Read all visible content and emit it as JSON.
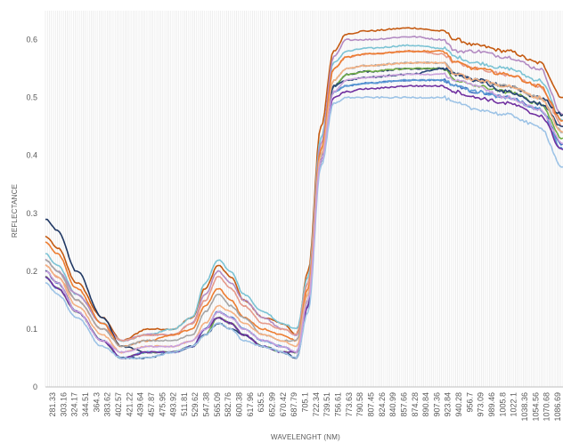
{
  "chart_data": {
    "type": "line",
    "title": "",
    "xlabel": "WAVELENGHT (NM)",
    "ylabel": "REFLECTANCE",
    "ylim": [
      0,
      0.65
    ],
    "y_ticks": [
      "0",
      "0.1",
      "0.2",
      "0.3",
      "0.4",
      "0.5",
      "0.6"
    ],
    "y_tick_values": [
      0,
      0.1,
      0.2,
      0.3,
      0.4,
      0.5,
      0.6
    ],
    "x_tick_labels": [
      "281.33",
      "303.16",
      "324.17",
      "344.51",
      "364.3",
      "383.62",
      "402.57",
      "421.22",
      "439.64",
      "457.87",
      "475.95",
      "493.92",
      "511.81",
      "529.62",
      "547.38",
      "565.09",
      "582.76",
      "600.38",
      "617.96",
      "635.5",
      "652.99",
      "670.42",
      "687.79",
      "705.1",
      "722.34",
      "739.51",
      "756.61",
      "773.63",
      "790.58",
      "807.45",
      "824.26",
      "840.99",
      "857.66",
      "874.28",
      "890.84",
      "907.36",
      "923.84",
      "940.28",
      "956.7",
      "973.09",
      "989.46",
      "1005.8",
      "1022.1",
      "1038.36",
      "1054.56",
      "1070.68",
      "1086.69"
    ],
    "grid": "dense vertical gridlines",
    "legend": "none",
    "x_anchor_wavelengths": [
      281.33,
      300,
      330,
      370,
      400,
      440,
      480,
      510,
      530,
      550,
      570,
      590,
      620,
      650,
      672,
      690,
      710,
      730,
      750,
      780,
      850,
      900,
      920,
      950,
      1000,
      1050,
      1086.69
    ],
    "series": [
      {
        "color": "#c55a11",
        "values": [
          0.26,
          0.24,
          0.18,
          0.12,
          0.08,
          0.1,
          0.1,
          0.12,
          0.17,
          0.21,
          0.19,
          0.15,
          0.12,
          0.11,
          0.09,
          0.2,
          0.45,
          0.58,
          0.61,
          0.615,
          0.62,
          0.615,
          0.6,
          0.59,
          0.58,
          0.56,
          0.5
        ]
      },
      {
        "color": "#7cc3d4",
        "values": [
          0.23,
          0.21,
          0.16,
          0.11,
          0.08,
          0.09,
          0.1,
          0.12,
          0.18,
          0.22,
          0.2,
          0.16,
          0.13,
          0.11,
          0.1,
          0.19,
          0.43,
          0.56,
          0.58,
          0.585,
          0.59,
          0.585,
          0.57,
          0.56,
          0.55,
          0.53,
          0.46
        ]
      },
      {
        "color": "#b38bc2",
        "values": [
          0.22,
          0.2,
          0.16,
          0.11,
          0.08,
          0.09,
          0.09,
          0.11,
          0.16,
          0.2,
          0.18,
          0.15,
          0.12,
          0.1,
          0.09,
          0.18,
          0.42,
          0.57,
          0.6,
          0.6,
          0.605,
          0.6,
          0.58,
          0.58,
          0.57,
          0.55,
          0.47
        ]
      },
      {
        "color": "#e69a8a",
        "values": [
          0.21,
          0.19,
          0.15,
          0.1,
          0.08,
          0.09,
          0.09,
          0.11,
          0.15,
          0.19,
          0.17,
          0.14,
          0.11,
          0.1,
          0.09,
          0.18,
          0.41,
          0.55,
          0.57,
          0.575,
          0.58,
          0.575,
          0.56,
          0.55,
          0.54,
          0.52,
          0.45
        ]
      },
      {
        "color": "#203864",
        "values": [
          0.29,
          0.27,
          0.2,
          0.12,
          0.07,
          0.06,
          0.06,
          0.07,
          0.09,
          0.12,
          0.11,
          0.09,
          0.07,
          0.06,
          0.05,
          0.15,
          0.4,
          0.52,
          0.54,
          0.545,
          0.55,
          0.55,
          0.54,
          0.53,
          0.52,
          0.5,
          0.47
        ]
      },
      {
        "color": "#4472c4",
        "values": [
          0.2,
          0.18,
          0.13,
          0.08,
          0.05,
          0.06,
          0.06,
          0.07,
          0.1,
          0.13,
          0.12,
          0.1,
          0.08,
          0.07,
          0.06,
          0.15,
          0.4,
          0.51,
          0.52,
          0.525,
          0.53,
          0.53,
          0.52,
          0.51,
          0.5,
          0.48,
          0.42
        ]
      },
      {
        "color": "#70ad47",
        "values": [
          0.19,
          0.17,
          0.13,
          0.08,
          0.05,
          0.06,
          0.06,
          0.07,
          0.09,
          0.12,
          0.11,
          0.09,
          0.07,
          0.06,
          0.06,
          0.15,
          0.39,
          0.52,
          0.54,
          0.545,
          0.55,
          0.55,
          0.53,
          0.52,
          0.51,
          0.49,
          0.43
        ]
      },
      {
        "color": "#ed7d31",
        "values": [
          0.25,
          0.23,
          0.17,
          0.11,
          0.07,
          0.08,
          0.09,
          0.1,
          0.14,
          0.17,
          0.15,
          0.12,
          0.1,
          0.09,
          0.08,
          0.17,
          0.41,
          0.55,
          0.57,
          0.575,
          0.58,
          0.58,
          0.56,
          0.55,
          0.54,
          0.52,
          0.46
        ]
      },
      {
        "color": "#a5a5a5",
        "values": [
          0.22,
          0.2,
          0.15,
          0.1,
          0.07,
          0.08,
          0.08,
          0.09,
          0.13,
          0.16,
          0.14,
          0.12,
          0.09,
          0.08,
          0.08,
          0.16,
          0.4,
          0.53,
          0.55,
          0.555,
          0.56,
          0.56,
          0.54,
          0.53,
          0.52,
          0.5,
          0.44
        ]
      },
      {
        "color": "#5b9bd5",
        "values": [
          0.19,
          0.17,
          0.13,
          0.08,
          0.05,
          0.06,
          0.06,
          0.07,
          0.1,
          0.13,
          0.12,
          0.1,
          0.08,
          0.07,
          0.06,
          0.15,
          0.4,
          0.51,
          0.52,
          0.525,
          0.53,
          0.53,
          0.52,
          0.51,
          0.5,
          0.48,
          0.41
        ]
      },
      {
        "color": "#264478",
        "values": [
          0.2,
          0.18,
          0.13,
          0.08,
          0.05,
          0.05,
          0.06,
          0.07,
          0.09,
          0.11,
          0.1,
          0.09,
          0.07,
          0.06,
          0.05,
          0.14,
          0.39,
          0.52,
          0.53,
          0.535,
          0.54,
          0.55,
          0.54,
          0.53,
          0.51,
          0.49,
          0.45
        ]
      },
      {
        "color": "#7030a0",
        "values": [
          0.19,
          0.17,
          0.13,
          0.08,
          0.05,
          0.06,
          0.06,
          0.07,
          0.1,
          0.12,
          0.11,
          0.09,
          0.07,
          0.06,
          0.06,
          0.14,
          0.39,
          0.5,
          0.51,
          0.515,
          0.52,
          0.52,
          0.51,
          0.5,
          0.49,
          0.47,
          0.41
        ]
      },
      {
        "color": "#9dc3e6",
        "values": [
          0.18,
          0.16,
          0.12,
          0.07,
          0.05,
          0.05,
          0.06,
          0.07,
          0.09,
          0.11,
          0.1,
          0.08,
          0.07,
          0.06,
          0.05,
          0.13,
          0.38,
          0.49,
          0.5,
          0.5,
          0.5,
          0.5,
          0.49,
          0.48,
          0.47,
          0.45,
          0.38
        ]
      },
      {
        "color": "#f4b183",
        "values": [
          0.21,
          0.19,
          0.14,
          0.09,
          0.06,
          0.07,
          0.07,
          0.08,
          0.11,
          0.14,
          0.13,
          0.11,
          0.09,
          0.08,
          0.07,
          0.16,
          0.4,
          0.53,
          0.55,
          0.555,
          0.56,
          0.56,
          0.54,
          0.53,
          0.52,
          0.5,
          0.44
        ]
      },
      {
        "color": "#c9a0dc",
        "values": [
          0.2,
          0.18,
          0.13,
          0.08,
          0.06,
          0.07,
          0.07,
          0.08,
          0.1,
          0.13,
          0.12,
          0.1,
          0.08,
          0.07,
          0.06,
          0.15,
          0.39,
          0.51,
          0.53,
          0.535,
          0.54,
          0.54,
          0.53,
          0.52,
          0.5,
          0.48,
          0.42
        ]
      }
    ]
  }
}
